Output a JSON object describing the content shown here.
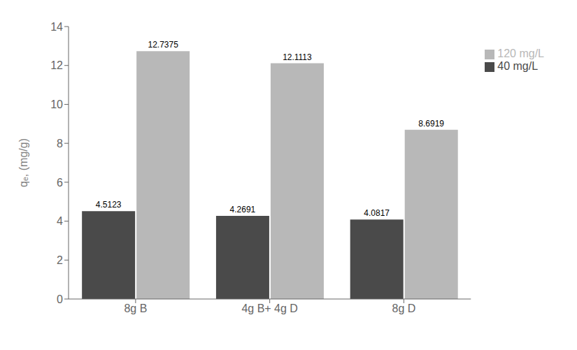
{
  "chart_data": {
    "type": "bar",
    "categories": [
      "8g B",
      "4g B+ 4g D",
      "8g D"
    ],
    "series": [
      {
        "name": "40 mg/L",
        "color": "#4a4a4a",
        "values": [
          4.5123,
          4.2691,
          4.0817
        ]
      },
      {
        "name": "120 mg/L",
        "color": "#b8b8b8",
        "values": [
          12.7375,
          12.1113,
          8.6919
        ]
      }
    ],
    "ylabel": "qₑ, (mg/g)",
    "ylim": [
      0,
      14
    ],
    "yticks": [
      0,
      2,
      4,
      6,
      8,
      10,
      12,
      14
    ],
    "data_labels": true,
    "legend": "right",
    "grid": false
  }
}
